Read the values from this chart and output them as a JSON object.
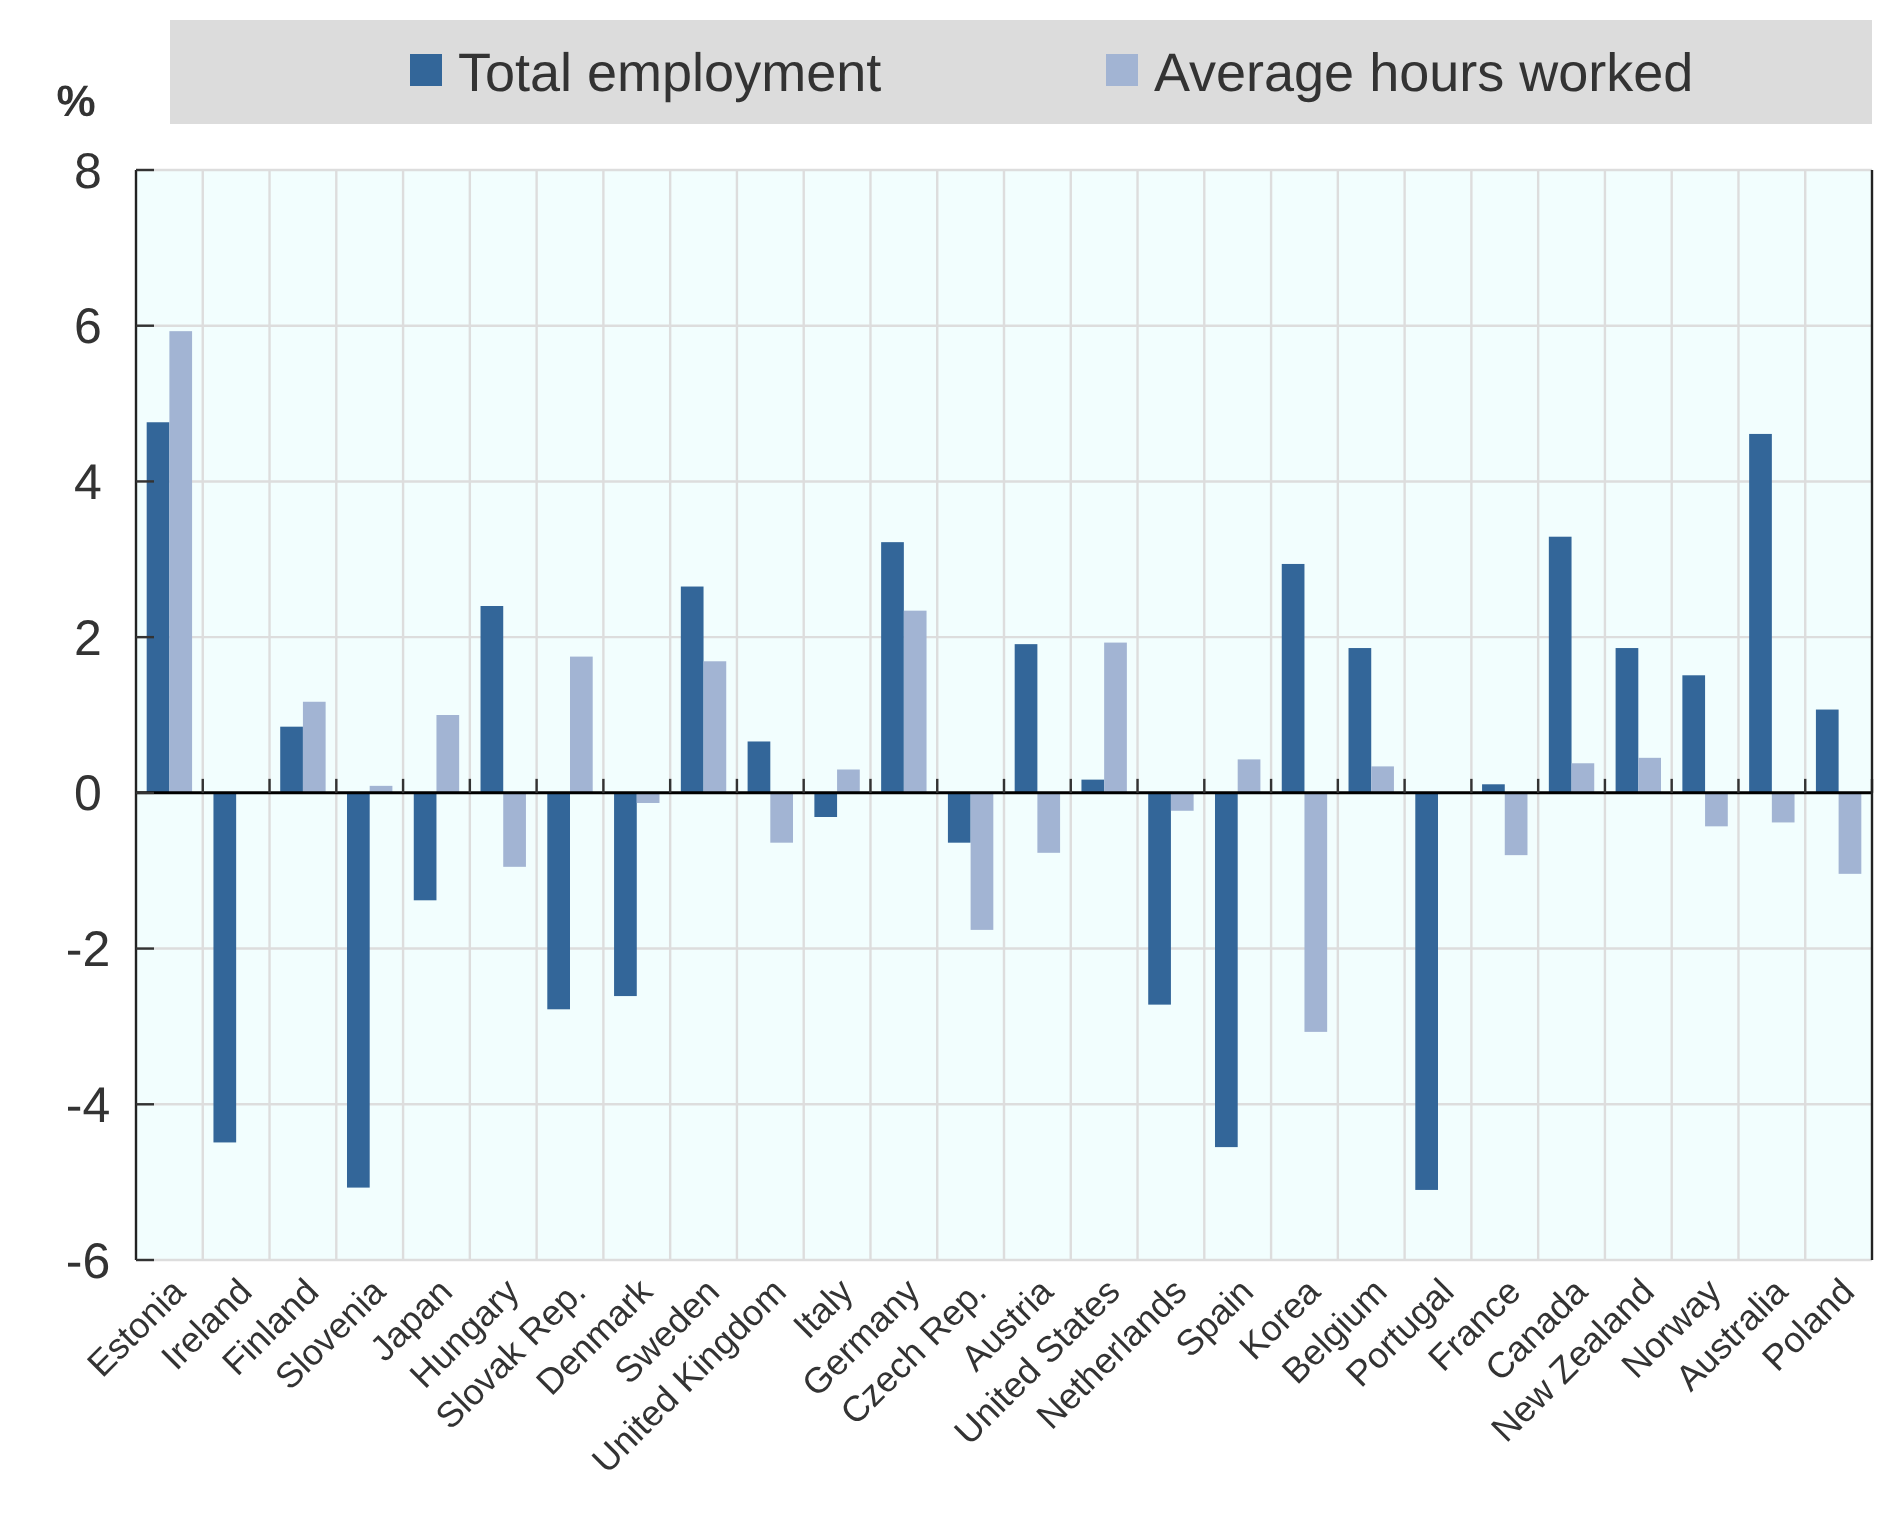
{
  "chart_data": {
    "type": "bar",
    "ylabel": "%",
    "categories": [
      "Estonia",
      "Ireland",
      "Finland",
      "Slovenia",
      "Japan",
      "Hungary",
      "Slovak Rep.",
      "Denmark",
      "Sweden",
      "United Kingdom",
      "Italy",
      "Germany",
      "Czech Rep.",
      "Austria",
      "United States",
      "Netherlands",
      "Spain",
      "Korea",
      "Belgium",
      "Portugal",
      "France",
      "Canada",
      "New Zealand",
      "Norway",
      "Australia",
      "Poland"
    ],
    "series": [
      {
        "name": "Total employment",
        "color": "#336699",
        "values": [
          4.76,
          -4.49,
          0.85,
          -5.07,
          -1.38,
          2.4,
          -2.78,
          -2.61,
          2.65,
          0.66,
          -0.31,
          3.22,
          -0.64,
          1.91,
          0.17,
          -2.72,
          -4.55,
          2.94,
          1.86,
          -5.1,
          0.11,
          3.29,
          1.86,
          1.51,
          4.61,
          1.07
        ]
      },
      {
        "name": "Average hours worked",
        "color": "#a2b4d3",
        "values": [
          5.93,
          null,
          1.17,
          0.09,
          1.0,
          -0.95,
          1.75,
          -0.13,
          1.69,
          -0.64,
          0.3,
          2.34,
          -1.76,
          -0.77,
          1.93,
          -0.23,
          0.43,
          -3.07,
          0.34,
          null,
          -0.8,
          0.38,
          0.45,
          -0.43,
          -0.38,
          -1.04
        ]
      }
    ],
    "ylim": [
      -6,
      8
    ],
    "yticks": [
      -6,
      -4,
      -2,
      0,
      2,
      4,
      6,
      8
    ],
    "grid": true,
    "legend": "top"
  }
}
